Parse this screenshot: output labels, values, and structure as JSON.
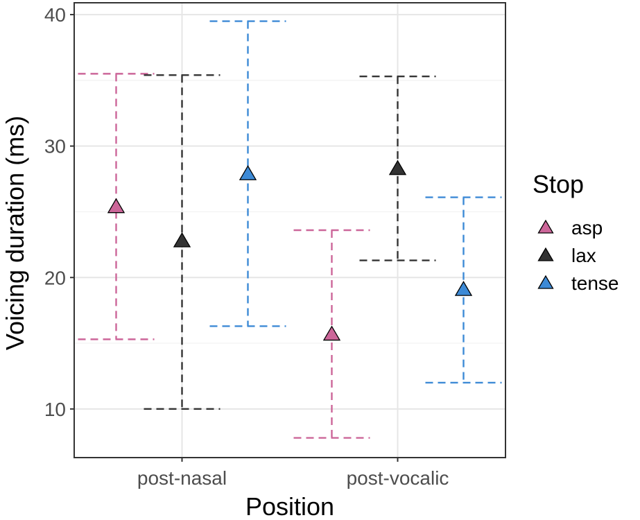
{
  "chart_data": {
    "type": "errorbar",
    "xlabel": "Position",
    "ylabel": "Voicing duration (ms)",
    "categories": [
      "post-nasal",
      "post-vocalic"
    ],
    "ylim": [
      6.3,
      40.9
    ],
    "yticks": [
      10,
      20,
      30,
      40
    ],
    "grid": true,
    "legend": {
      "title": "Stop",
      "placement": "right"
    },
    "series": [
      {
        "name": "asp",
        "color": "#cc6699",
        "points": [
          {
            "x": "post-nasal",
            "y": 25.4,
            "lower": 15.3,
            "upper": 35.5
          },
          {
            "x": "post-vocalic",
            "y": 15.7,
            "lower": 7.8,
            "upper": 23.6
          }
        ]
      },
      {
        "name": "lax",
        "color": "#333333",
        "points": [
          {
            "x": "post-nasal",
            "y": 22.8,
            "lower": 10.0,
            "upper": 35.4
          },
          {
            "x": "post-vocalic",
            "y": 28.3,
            "lower": 21.3,
            "upper": 35.3
          }
        ]
      },
      {
        "name": "tense",
        "color": "#3d8ad6",
        "points": [
          {
            "x": "post-nasal",
            "y": 27.9,
            "lower": 16.3,
            "upper": 39.5
          },
          {
            "x": "post-vocalic",
            "y": 19.1,
            "lower": 12.0,
            "upper": 26.1
          }
        ]
      }
    ]
  }
}
